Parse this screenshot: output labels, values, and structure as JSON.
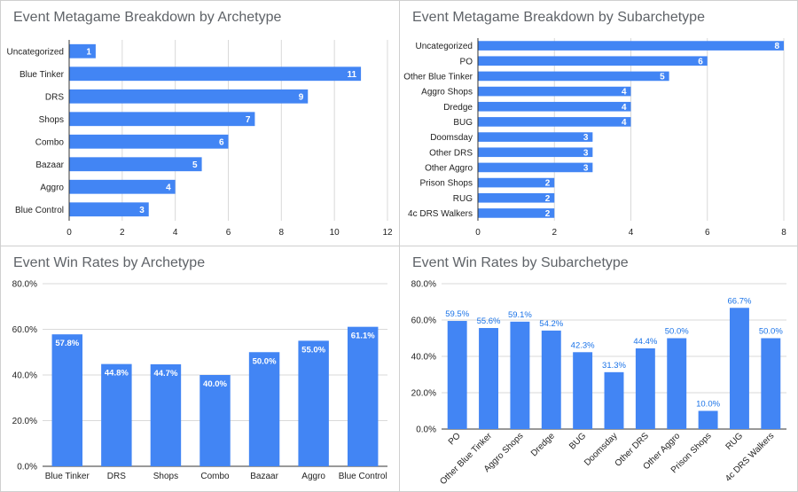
{
  "colors": {
    "bar": "#4285f4",
    "grid": "#d9d9d9",
    "axis_text": "#222222",
    "title": "#5f6368",
    "label_dark": "#1a73e8"
  },
  "chart_data": [
    {
      "type": "bar",
      "orientation": "horizontal",
      "title": "Event Metagame Breakdown by Archetype",
      "categories": [
        "Uncategorized",
        "Blue Tinker",
        "DRS",
        "Shops",
        "Combo",
        "Bazaar",
        "Aggro",
        "Blue Control"
      ],
      "values": [
        1,
        11,
        9,
        7,
        6,
        5,
        4,
        3
      ],
      "data_labels": [
        "1",
        "11",
        "9",
        "7",
        "6",
        "5",
        "4",
        "3"
      ],
      "xlim": [
        0,
        12
      ],
      "ticks": [
        "0",
        "2",
        "4",
        "6",
        "8",
        "10",
        "12"
      ],
      "grid": true,
      "data_label_position": "inside-end"
    },
    {
      "type": "bar",
      "orientation": "horizontal",
      "title": "Event Metagame Breakdown by Subarchetype",
      "categories": [
        "Uncategorized",
        "PO",
        "Other Blue Tinker",
        "Aggro Shops",
        "Dredge",
        "BUG",
        "Doomsday",
        "Other DRS",
        "Other Aggro",
        "Prison Shops",
        "RUG",
        "4c DRS Walkers"
      ],
      "values": [
        8,
        6,
        5,
        4,
        4,
        4,
        3,
        3,
        3,
        2,
        2,
        2
      ],
      "data_labels": [
        "8",
        "6",
        "5",
        "4",
        "4",
        "4",
        "3",
        "3",
        "3",
        "2",
        "2",
        "2"
      ],
      "xlim": [
        0,
        8
      ],
      "ticks": [
        "0",
        "2",
        "4",
        "6",
        "8"
      ],
      "grid": true,
      "data_label_position": "inside-end"
    },
    {
      "type": "bar",
      "orientation": "vertical",
      "title": "Event Win Rates by Archetype",
      "categories": [
        "Blue Tinker",
        "DRS",
        "Shops",
        "Combo",
        "Bazaar",
        "Aggro",
        "Blue Control"
      ],
      "values": [
        57.8,
        44.8,
        44.7,
        40.0,
        50.0,
        55.0,
        61.1
      ],
      "data_labels": [
        "57.8%",
        "44.8%",
        "44.7%",
        "40.0%",
        "50.0%",
        "55.0%",
        "61.1%"
      ],
      "ylim": [
        0,
        80
      ],
      "ticks": [
        "0.0%",
        "20.0%",
        "40.0%",
        "60.0%",
        "80.0%"
      ],
      "grid": true,
      "data_label_position": "inside-end"
    },
    {
      "type": "bar",
      "orientation": "vertical",
      "title": "Event Win Rates by Subarchetype",
      "categories": [
        "PO",
        "Other Blue Tinker",
        "Aggro Shops",
        "Dredge",
        "BUG",
        "Doomsday",
        "Other DRS",
        "Other Aggro",
        "Prison Shops",
        "RUG",
        "4c DRS Walkers"
      ],
      "values": [
        59.5,
        55.6,
        59.1,
        54.2,
        42.3,
        31.3,
        44.4,
        50.0,
        10.0,
        66.7,
        50.0
      ],
      "data_labels": [
        "59.5%",
        "55.6%",
        "59.1%",
        "54.2%",
        "42.3%",
        "31.3%",
        "44.4%",
        "50.0%",
        "10.0%",
        "66.7%",
        "50.0%"
      ],
      "ylim": [
        0,
        80
      ],
      "ticks": [
        "0.0%",
        "20.0%",
        "40.0%",
        "60.0%",
        "80.0%"
      ],
      "grid": true,
      "data_label_position": "outside-end",
      "category_label_rotation": "rotated"
    }
  ]
}
